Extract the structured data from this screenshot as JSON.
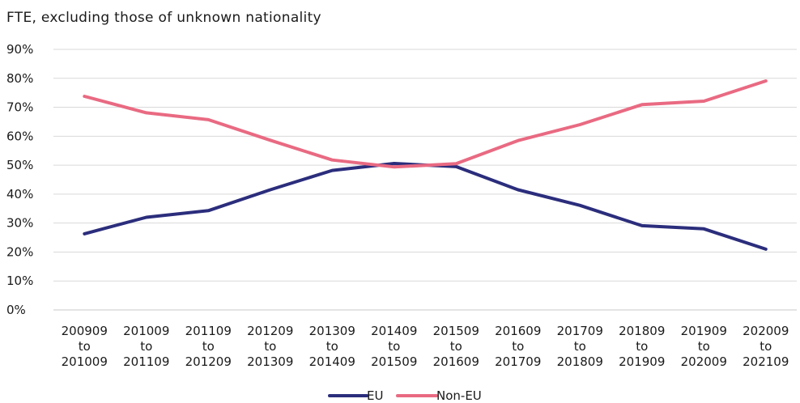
{
  "chart_data": {
    "type": "line",
    "title": "FTE, excluding those of unknown nationality",
    "xlabel": "",
    "ylabel": "",
    "ylim": [
      0,
      90
    ],
    "y_ticks": [
      "0%",
      "10%",
      "20%",
      "30%",
      "40%",
      "50%",
      "60%",
      "70%",
      "80%",
      "90%"
    ],
    "grid": true,
    "legend_position": "bottom",
    "categories": [
      [
        "200909",
        "to",
        "201009"
      ],
      [
        "201009",
        "to",
        "201109"
      ],
      [
        "201109",
        "to",
        "201209"
      ],
      [
        "201209",
        "to",
        "201309"
      ],
      [
        "201309",
        "to",
        "201409"
      ],
      [
        "201409",
        "to",
        "201509"
      ],
      [
        "201509",
        "to",
        "201609"
      ],
      [
        "201609",
        "to",
        "201709"
      ],
      [
        "201709",
        "to",
        "201809"
      ],
      [
        "201809",
        "to",
        "201909"
      ],
      [
        "201909",
        "to",
        "202009"
      ],
      [
        "202009",
        "to",
        "202109"
      ]
    ],
    "series": [
      {
        "name": "EU",
        "color": "#2b2d7c",
        "values": [
          26.3,
          32.0,
          34.3,
          41.5,
          48.2,
          50.6,
          49.5,
          41.5,
          36.1,
          29.1,
          28.0,
          21.0
        ]
      },
      {
        "name": "Non-EU",
        "color": "#e96a82",
        "values": [
          73.8,
          68.1,
          65.7,
          58.6,
          51.8,
          49.4,
          50.5,
          58.5,
          64.0,
          70.9,
          72.1,
          79.1
        ]
      }
    ]
  }
}
